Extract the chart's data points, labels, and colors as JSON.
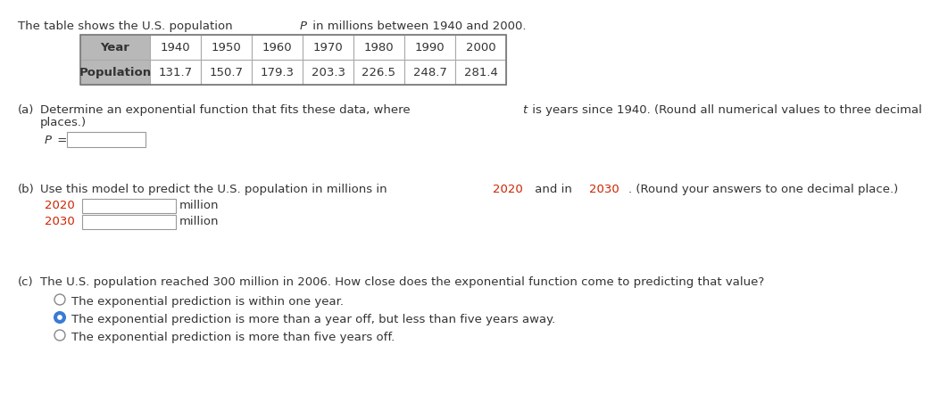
{
  "bg_color": "#ffffff",
  "text_color": "#333333",
  "red_color": "#cc2200",
  "header_bg": "#b8b8b8",
  "table_border": "#aaaaaa",
  "years": [
    "1940",
    "1950",
    "1960",
    "1970",
    "1980",
    "1990",
    "2000"
  ],
  "populations": [
    "131.7",
    "150.7",
    "179.3",
    "203.3",
    "226.5",
    "248.7",
    "281.4"
  ],
  "font_size": 9.5,
  "title_pre": "The table shows the U.S. population ",
  "title_italic": "P",
  "title_post": " in millions between 1940 and 2000.",
  "part_a_label": "(a)",
  "part_a_line1_pre": "Determine an exponential function that fits these data, where ",
  "part_a_line1_italic": "t",
  "part_a_line1_post": " is years since 1940. (Round all numerical values to three decimal",
  "part_a_line2": "places.)",
  "p_eq": "P =",
  "part_b_label": "(b)",
  "part_b_pre": "Use this model to predict the U.S. population in millions in ",
  "part_b_2020": "2020",
  "part_b_mid": " and in ",
  "part_b_2030": "2030",
  "part_b_post": ". (Round your answers to one decimal place.)",
  "year_2020": "2020",
  "year_2030": "2030",
  "million": "million",
  "part_c_label": "(c)",
  "part_c_text": "The U.S. population reached 300 million in 2006. How close does the exponential function come to predicting that value?",
  "option1": "The exponential prediction is within one year.",
  "option2": "The exponential prediction is more than a year off, but less than five years away.",
  "option3": "The exponential prediction is more than five years off.",
  "selected_option": 2
}
